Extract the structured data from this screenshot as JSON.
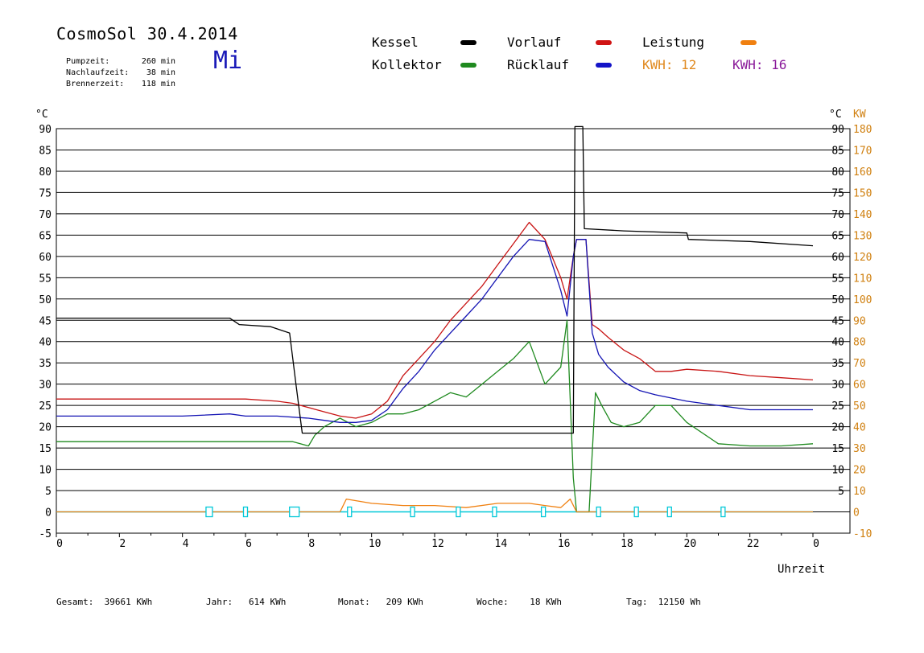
{
  "header": {
    "title": "CosmoSol 30.4.2014",
    "weekday": "Mi",
    "stats": [
      {
        "label": "Pumpzeit:",
        "value": "260 min"
      },
      {
        "label": "Nachlaufzeit:",
        "value": "38 min"
      },
      {
        "label": "Brennerzeit:",
        "value": "118 min"
      }
    ]
  },
  "legend": {
    "kessel": "Kessel",
    "kollektor": "Kollektor",
    "vorlauf": "Vorlauf",
    "ruecklauf": "Rücklauf",
    "leistung": "Leistung",
    "kwh1_label": "KWH:",
    "kwh1_value": "12",
    "kwh2_label": "KWH:",
    "kwh2_value": "16"
  },
  "footer": {
    "gesamt_label": "Gesamt:",
    "gesamt_value": "39661 KWh",
    "jahr_label": "Jahr:",
    "jahr_value": "614 KWh",
    "monat_label": "Monat:",
    "monat_value": "209 KWh",
    "woche_label": "Woche:",
    "woche_value": "18 KWh",
    "tag_label": "Tag:",
    "tag_value": "12150 Wh"
  },
  "colors": {
    "kessel": "#000000",
    "kollektor": "#1f8a1f",
    "vorlauf": "#c81414",
    "ruecklauf": "#1414b4",
    "leistung": "#f08010",
    "kwh1": "#e08a20",
    "kwh2": "#8a1a9a",
    "pump": "#00c8d8",
    "grid": "#000000",
    "kw_axis": "#d08010"
  },
  "chart_data": {
    "type": "line",
    "xlabel": "Uhrzeit",
    "ylabel_left": "°C",
    "ylabel_right_1": "°C",
    "ylabel_right_2": "KW",
    "xlim": [
      0,
      24
    ],
    "ylim": [
      -5,
      90
    ],
    "ylim_kw": [
      -10,
      180
    ],
    "x_ticks": [
      "0",
      "2",
      "4",
      "6",
      "8",
      "10",
      "12",
      "14",
      "16",
      "18",
      "20",
      "22",
      "0"
    ],
    "y_ticks_left": [
      "90",
      "85",
      "80",
      "75",
      "70",
      "65",
      "60",
      "55",
      "50",
      "45",
      "40",
      "35",
      "30",
      "25",
      "20",
      "15",
      "10",
      "5",
      "0",
      "-5"
    ],
    "y_ticks_right": [
      "90",
      "85",
      "80",
      "75",
      "70",
      "65",
      "60",
      "55",
      "50",
      "45",
      "40",
      "35",
      "30",
      "25",
      "20",
      "15",
      "10",
      "5"
    ],
    "kw_ticks": [
      "180",
      "170",
      "160",
      "150",
      "140",
      "130",
      "120",
      "110",
      "100",
      "90",
      "80",
      "70",
      "60",
      "50",
      "40",
      "30",
      "20",
      "10",
      "0",
      "-10"
    ],
    "grid": true,
    "series": [
      {
        "name": "Kessel",
        "x": [
          0,
          5.5,
          5.8,
          6.8,
          7.2,
          7.4,
          7.6,
          7.8,
          8.2,
          9.0,
          10.0,
          11.0,
          12.0,
          13.0,
          14.0,
          15.0,
          16.0,
          16.3,
          16.4,
          16.45,
          16.7,
          16.75,
          18.0,
          20.0,
          20.05,
          22.0,
          24.0
        ],
        "y": [
          45.5,
          45.5,
          44,
          43.5,
          42.5,
          42,
          30,
          18.5,
          18.5,
          18.5,
          18.5,
          18.5,
          18.5,
          18.5,
          18.5,
          18.5,
          18.5,
          18.5,
          18.5,
          90.5,
          90.5,
          66.5,
          66,
          65.5,
          64,
          63.5,
          62.5
        ]
      },
      {
        "name": "Vorlauf",
        "x": [
          0,
          2,
          4,
          6,
          7,
          7.5,
          8,
          8.5,
          9,
          9.5,
          10,
          10.5,
          11,
          11.5,
          12,
          12.5,
          13,
          13.5,
          14,
          14.5,
          15,
          15.5,
          16,
          16.2,
          16.4,
          16.5,
          16.8,
          17.0,
          17.2,
          17.5,
          18,
          18.5,
          19,
          19.5,
          20,
          21,
          22,
          23,
          24
        ],
        "y": [
          26.5,
          26.5,
          26.5,
          26.5,
          26,
          25.5,
          24.5,
          23.5,
          22.5,
          22,
          23,
          26,
          32,
          36,
          40,
          45,
          49,
          53,
          58,
          63,
          68,
          64,
          55,
          50,
          60,
          64,
          64,
          44,
          43,
          41,
          38,
          36,
          33,
          33,
          33.5,
          33,
          32,
          31.5,
          31
        ]
      },
      {
        "name": "Rücklauf",
        "x": [
          0,
          2,
          4,
          5.5,
          6,
          7,
          8,
          8.5,
          9,
          9.5,
          10,
          10.5,
          11,
          11.5,
          12,
          12.5,
          13,
          13.5,
          14,
          14.5,
          15,
          15.5,
          16,
          16.2,
          16.4,
          16.5,
          16.8,
          17.0,
          17.2,
          17.5,
          18,
          18.5,
          19,
          20,
          21,
          22,
          23,
          24
        ],
        "y": [
          22.5,
          22.5,
          22.5,
          23,
          22.5,
          22.5,
          22,
          21.5,
          21,
          21,
          21.5,
          24,
          29,
          33,
          38,
          42,
          46,
          50,
          55,
          60,
          64,
          63.5,
          52,
          46,
          60,
          64,
          64,
          42,
          37,
          34,
          30.5,
          28.5,
          27.5,
          26,
          25,
          24,
          24,
          24
        ]
      },
      {
        "name": "Kollektor",
        "x": [
          0,
          2,
          4,
          6,
          7.5,
          8.0,
          8.2,
          8.5,
          9,
          9.5,
          10,
          10.5,
          11,
          11.5,
          12,
          12.5,
          13,
          13.5,
          14,
          14.5,
          15,
          15.5,
          16,
          16.2,
          16.4,
          16.5,
          16.9,
          17.1,
          17.3,
          17.6,
          18,
          18.5,
          19,
          19.5,
          20,
          21,
          22,
          23,
          24
        ],
        "y": [
          16.5,
          16.5,
          16.5,
          16.5,
          16.5,
          15.5,
          18,
          20,
          22,
          20,
          21,
          23,
          23,
          24,
          26,
          28,
          27,
          30,
          33,
          36,
          40,
          30,
          34,
          45,
          8,
          0,
          0,
          28,
          25,
          21,
          20,
          21,
          25,
          25,
          21,
          16,
          15.5,
          15.5,
          16
        ]
      },
      {
        "name": "Leistung",
        "x": [
          0,
          9.0,
          9.2,
          10,
          11,
          12,
          13,
          14,
          15,
          15.5,
          16,
          16.3,
          16.5,
          24
        ],
        "y": [
          0,
          0,
          3,
          2,
          1.5,
          1.5,
          1,
          2,
          2,
          1.5,
          1,
          3,
          0,
          0
        ]
      }
    ]
  }
}
